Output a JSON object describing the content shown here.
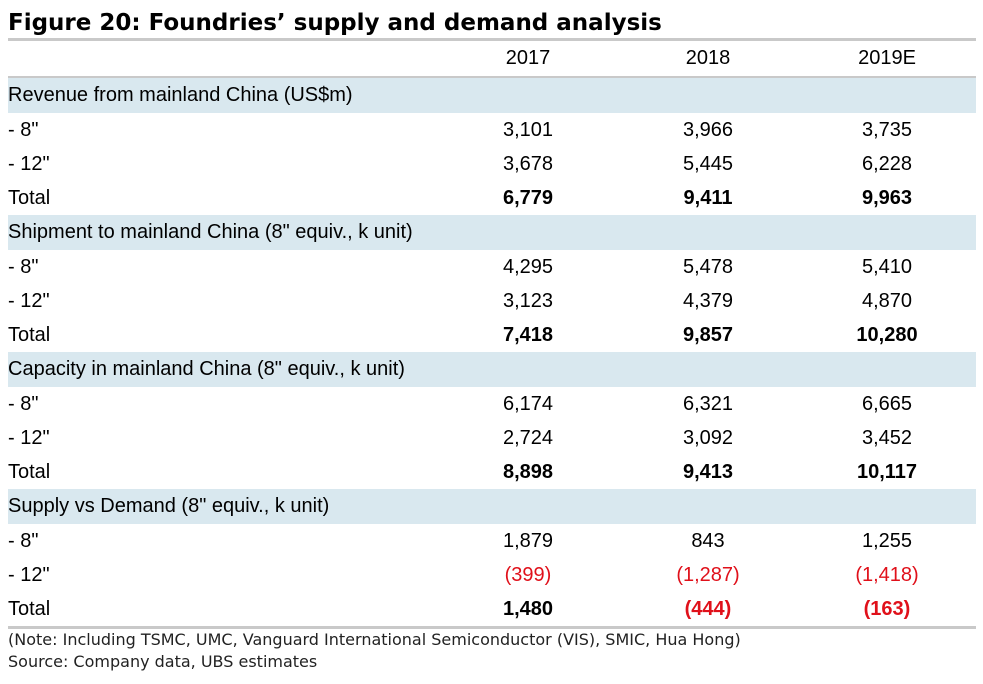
{
  "title": "Figure 20: Foundries’ supply and demand analysis",
  "columns": [
    "2017",
    "2018",
    "2019E"
  ],
  "sections": [
    {
      "heading": "Revenue from mainland China (US$m)",
      "rows": [
        {
          "label": "- 8\"",
          "values": [
            "3,101",
            "3,966",
            "3,735"
          ]
        },
        {
          "label": "- 12\"",
          "values": [
            "3,678",
            "5,445",
            "6,228"
          ]
        },
        {
          "label": "Total",
          "values": [
            "6,779",
            "9,411",
            "9,963"
          ]
        }
      ]
    },
    {
      "heading": "Shipment to mainland China (8\" equiv., k unit)",
      "rows": [
        {
          "label": "- 8\"",
          "values": [
            "4,295",
            "5,478",
            "5,410"
          ]
        },
        {
          "label": "- 12\"",
          "values": [
            "3,123",
            "4,379",
            "4,870"
          ]
        },
        {
          "label": "Total",
          "values": [
            "7,418",
            "9,857",
            "10,280"
          ]
        }
      ]
    },
    {
      "heading": "Capacity in mainland China (8\" equiv., k unit)",
      "rows": [
        {
          "label": "- 8\"",
          "values": [
            "6,174",
            "6,321",
            "6,665"
          ]
        },
        {
          "label": "- 12\"",
          "values": [
            "2,724",
            "3,092",
            "3,452"
          ]
        },
        {
          "label": "Total",
          "values": [
            "8,898",
            "9,413",
            "10,117"
          ]
        }
      ]
    },
    {
      "heading": "Supply vs Demand (8\" equiv., k unit)",
      "rows": [
        {
          "label": "- 8\"",
          "values": [
            "1,879",
            "843",
            "1,255"
          ]
        },
        {
          "label": "- 12\"",
          "values": [
            "(399)",
            "(1,287)",
            "(1,418)"
          ]
        },
        {
          "label": "Total",
          "values": [
            "1,480",
            "(444)",
            "(163)"
          ]
        }
      ]
    }
  ],
  "note": "(Note: Including TSMC, UMC, Vanguard International Semiconductor (VIS), SMIC, Hua Hong)",
  "source": "Source:  Company data, UBS estimates",
  "colors": {
    "negative": "#e0101a",
    "section_bg": "#d9e8ef",
    "rule": "#c9c9c9"
  }
}
